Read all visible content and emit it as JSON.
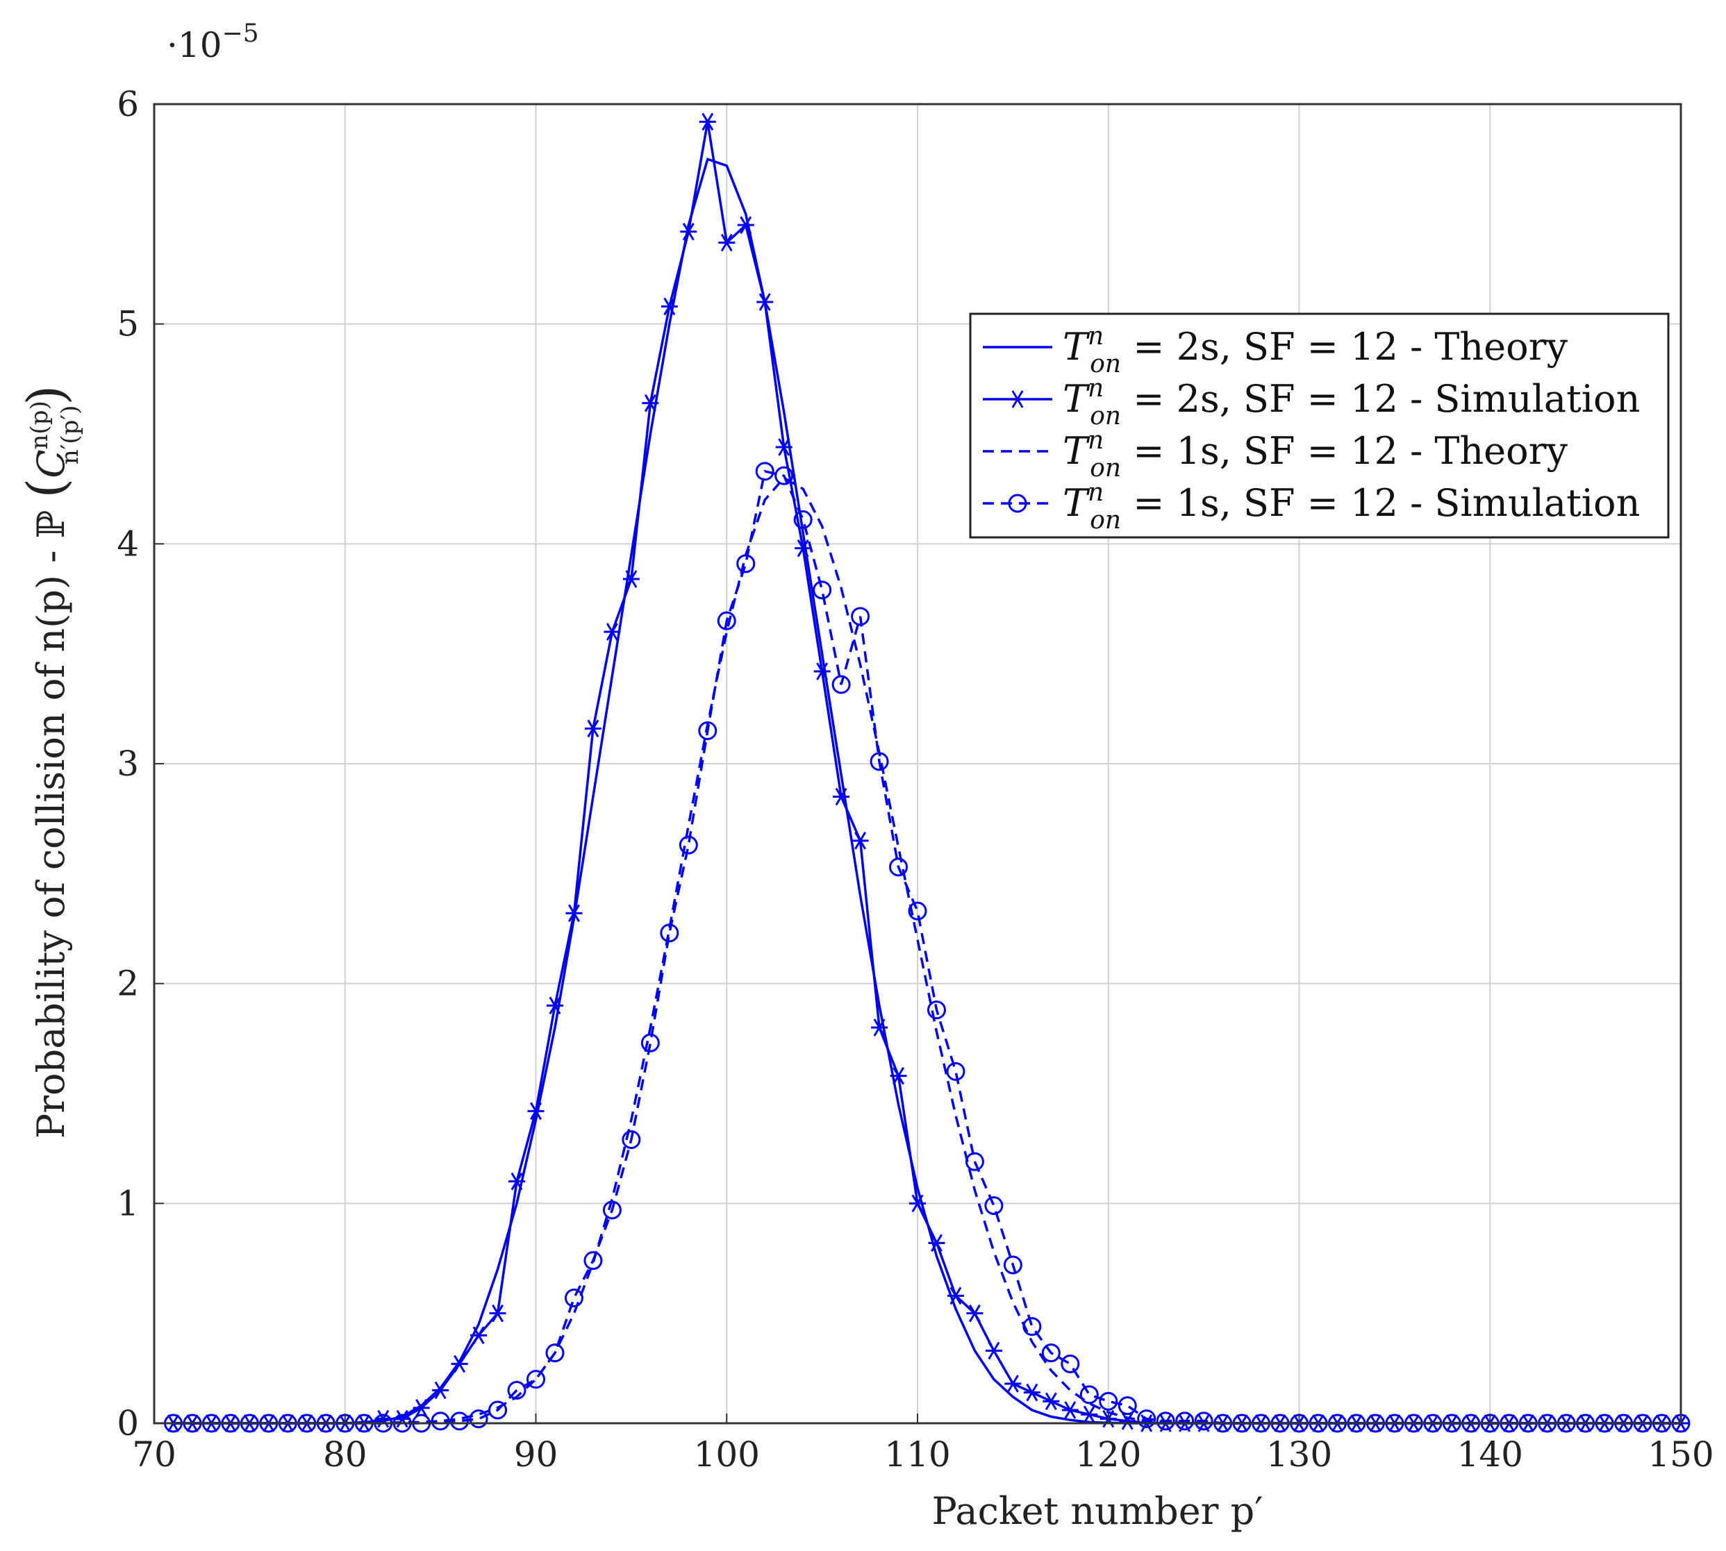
{
  "chart_data": {
    "type": "line",
    "title": "",
    "xlabel": "Packet number p′",
    "ylabel": "Probability of collision of n(p) - ℙ (C n(p) n′(p′) )",
    "ylabel_parts": {
      "main": "Probability of collision of n(p) - ℙ ",
      "sym": "C",
      "sup": "n(p)",
      "sub": "n′(p′)",
      "open": "(",
      "close": ")"
    },
    "y_multiplier": "·10−5",
    "xlim": [
      70,
      150
    ],
    "ylim": [
      0,
      6
    ],
    "xticks": [
      70,
      80,
      90,
      100,
      110,
      120,
      130,
      140,
      150
    ],
    "yticks": [
      0,
      1,
      2,
      3,
      4,
      5,
      6
    ],
    "grid": true,
    "legend_position": "top-right",
    "colors": {
      "series": "#0000ee"
    },
    "series": [
      {
        "name": "T_on^n = 2s, SF = 12 - Theory",
        "style": "solid",
        "marker": "none",
        "x": [
          71,
          75,
          80,
          82,
          83,
          84,
          85,
          86,
          87,
          88,
          89,
          90,
          91,
          92,
          93,
          94,
          95,
          96,
          97,
          98,
          99,
          100,
          101,
          102,
          103,
          104,
          105,
          106,
          107,
          108,
          109,
          110,
          111,
          112,
          113,
          114,
          115,
          116,
          117,
          118,
          119,
          120,
          121,
          125,
          130,
          140,
          150
        ],
        "y": [
          0,
          0,
          0,
          0.01,
          0.03,
          0.08,
          0.16,
          0.28,
          0.45,
          0.7,
          1.0,
          1.38,
          1.8,
          2.3,
          2.85,
          3.4,
          3.95,
          4.5,
          5.0,
          5.45,
          5.75,
          5.72,
          5.5,
          5.1,
          4.6,
          4.05,
          3.5,
          2.95,
          2.4,
          1.9,
          1.45,
          1.07,
          0.76,
          0.52,
          0.33,
          0.2,
          0.12,
          0.06,
          0.03,
          0.015,
          0.005,
          0.002,
          0,
          0,
          0,
          0,
          0
        ]
      },
      {
        "name": "T_on^n = 2s, SF = 12 - Simulation",
        "style": "solid",
        "marker": "star",
        "x": [
          71,
          72,
          73,
          74,
          75,
          76,
          77,
          78,
          79,
          80,
          81,
          82,
          83,
          84,
          85,
          86,
          87,
          88,
          89,
          90,
          91,
          92,
          93,
          94,
          95,
          96,
          97,
          98,
          99,
          100,
          101,
          102,
          103,
          104,
          105,
          106,
          107,
          108,
          109,
          110,
          111,
          112,
          113,
          114,
          115,
          116,
          117,
          118,
          119,
          120,
          121,
          122,
          123,
          124,
          125,
          126,
          127,
          128,
          129,
          130,
          131,
          132,
          133,
          134,
          135,
          136,
          137,
          138,
          139,
          140,
          141,
          142,
          143,
          144,
          145,
          146,
          147,
          148,
          149,
          150
        ],
        "y": [
          0,
          0,
          0,
          0,
          0,
          0,
          0,
          0,
          0,
          0,
          0,
          0.02,
          0.02,
          0.07,
          0.15,
          0.27,
          0.4,
          0.5,
          1.1,
          1.42,
          1.9,
          2.32,
          3.16,
          3.6,
          3.84,
          4.64,
          5.08,
          5.42,
          5.92,
          5.37,
          5.45,
          5.1,
          4.44,
          3.98,
          3.42,
          2.85,
          2.65,
          1.8,
          1.58,
          1.0,
          0.82,
          0.58,
          0.5,
          0.33,
          0.18,
          0.14,
          0.1,
          0.06,
          0.04,
          0.02,
          0.01,
          0,
          0,
          0,
          0,
          0,
          0,
          0,
          0,
          0,
          0,
          0,
          0,
          0,
          0,
          0,
          0,
          0,
          0,
          0,
          0,
          0,
          0,
          0,
          0,
          0,
          0,
          0,
          0,
          0
        ]
      },
      {
        "name": "T_on^n = 1s, SF = 12 - Theory",
        "style": "dashed",
        "marker": "none",
        "x": [
          71,
          75,
          80,
          84,
          85,
          86,
          87,
          88,
          89,
          90,
          91,
          92,
          93,
          94,
          95,
          96,
          97,
          98,
          99,
          100,
          101,
          102,
          103,
          104,
          105,
          106,
          107,
          108,
          109,
          110,
          111,
          112,
          113,
          114,
          115,
          116,
          117,
          118,
          119,
          120,
          121,
          122,
          125,
          130,
          140,
          150
        ],
        "y": [
          0,
          0,
          0,
          0.005,
          0.01,
          0.02,
          0.04,
          0.07,
          0.12,
          0.2,
          0.32,
          0.5,
          0.73,
          1.02,
          1.38,
          1.8,
          2.25,
          2.72,
          3.18,
          3.6,
          3.95,
          4.2,
          4.3,
          4.25,
          4.08,
          3.8,
          3.45,
          3.05,
          2.62,
          2.2,
          1.78,
          1.4,
          1.06,
          0.78,
          0.55,
          0.37,
          0.24,
          0.15,
          0.09,
          0.05,
          0.025,
          0.01,
          0,
          0,
          0,
          0
        ]
      },
      {
        "name": "T_on^n = 1s, SF = 12 - Simulation",
        "style": "dashed",
        "marker": "circle",
        "x": [
          71,
          72,
          73,
          74,
          75,
          76,
          77,
          78,
          79,
          80,
          81,
          82,
          83,
          84,
          85,
          86,
          87,
          88,
          89,
          90,
          91,
          92,
          93,
          94,
          95,
          96,
          97,
          98,
          99,
          100,
          101,
          102,
          103,
          104,
          105,
          106,
          107,
          108,
          109,
          110,
          111,
          112,
          113,
          114,
          115,
          116,
          117,
          118,
          119,
          120,
          121,
          122,
          123,
          124,
          125,
          126,
          127,
          128,
          129,
          130,
          131,
          132,
          133,
          134,
          135,
          136,
          137,
          138,
          139,
          140,
          141,
          142,
          143,
          144,
          145,
          146,
          147,
          148,
          149,
          150
        ],
        "y": [
          0,
          0,
          0,
          0,
          0,
          0,
          0,
          0,
          0,
          0,
          0,
          0,
          0,
          0,
          0.01,
          0.01,
          0.02,
          0.06,
          0.15,
          0.2,
          0.32,
          0.57,
          0.74,
          0.97,
          1.29,
          1.73,
          2.23,
          2.63,
          3.15,
          3.65,
          3.91,
          4.33,
          4.31,
          4.11,
          3.79,
          3.36,
          3.67,
          3.01,
          2.53,
          2.33,
          1.88,
          1.6,
          1.19,
          0.99,
          0.72,
          0.44,
          0.32,
          0.27,
          0.13,
          0.1,
          0.08,
          0.02,
          0.01,
          0.01,
          0.01,
          0,
          0,
          0,
          0,
          0,
          0,
          0,
          0,
          0,
          0,
          0,
          0,
          0,
          0,
          0,
          0,
          0,
          0,
          0,
          0,
          0,
          0,
          0,
          0,
          0
        ]
      }
    ]
  },
  "legend": [
    {
      "prefix": "T",
      "sup": "n",
      "sub": "on",
      "rest": " = 2s, SF = 12 - Theory"
    },
    {
      "prefix": "T",
      "sup": "n",
      "sub": "on",
      "rest": " = 2s, SF = 12 - Simulation"
    },
    {
      "prefix": "T",
      "sup": "n",
      "sub": "on",
      "rest": " = 1s, SF = 12 - Theory"
    },
    {
      "prefix": "T",
      "sup": "n",
      "sub": "on",
      "rest": " = 1s, SF = 12 - Simulation"
    }
  ]
}
